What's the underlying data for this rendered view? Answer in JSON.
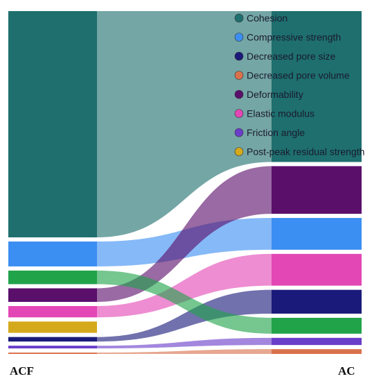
{
  "chart_data": {
    "type": "sankey",
    "nodes": [
      {
        "id": "ACF",
        "label": "ACF",
        "side": "left"
      },
      {
        "id": "AC",
        "label": "AC",
        "side": "right"
      }
    ],
    "categories": [
      {
        "name": "Cohesion",
        "color": "#1e6f6e",
        "acf": 100,
        "ac": 19
      },
      {
        "name": "Compressive strength",
        "color": "#3b8ef2",
        "acf": 11,
        "ac": 4
      },
      {
        "name": "Decreased pore size",
        "color": "#1a1a7a",
        "acf": 2,
        "ac": 3
      },
      {
        "name": "Decreased pore volume",
        "color": "#d9714c",
        "acf": 0.6,
        "ac": 0.6
      },
      {
        "name": "Deformability",
        "color": "#5a0f6b",
        "acf": 6,
        "ac": 6
      },
      {
        "name": "Elastic modulus",
        "color": "#e347b5",
        "acf": 5,
        "ac": 4
      },
      {
        "name": "Friction angle",
        "color": "#6a3ec9",
        "acf": 1.2,
        "ac": 0.9
      },
      {
        "name": "Post-peak residual strength",
        "color": "#d4a91c",
        "acf": 5,
        "ac": 0
      },
      {
        "name": "Green",
        "color": "#21a34a",
        "acf": 6,
        "ac": 2,
        "legend": false
      }
    ],
    "left_order": [
      "Cohesion",
      "Compressive strength",
      "Green",
      "Deformability",
      "Elastic modulus",
      "Post-peak residual strength",
      "Decreased pore size",
      "Friction angle",
      "Decreased pore volume"
    ],
    "right_order": [
      "Cohesion",
      "Deformability",
      "Compressive strength",
      "Elastic modulus",
      "Decreased pore size",
      "Green",
      "Friction angle",
      "Decreased pore volume"
    ],
    "legend_position": "top-right"
  }
}
